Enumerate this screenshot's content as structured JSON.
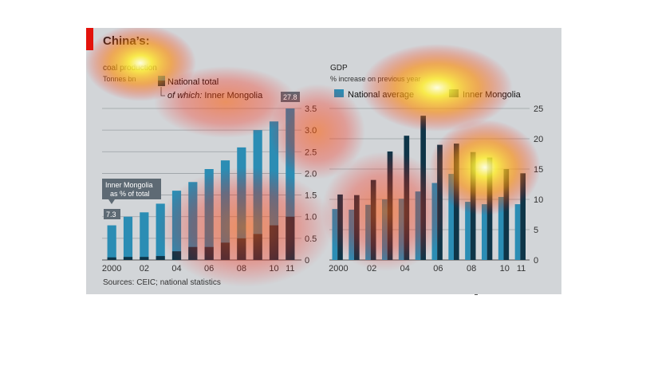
{
  "figure": {
    "title": "China’s:",
    "sources": "Sources: CEIC; national statistics"
  },
  "colors": {
    "background": "#d2d5d8",
    "accent_red": "#e3120b",
    "light_bar": "#2b8db4",
    "dark_bar": "#0e3548",
    "annotation_box": "#5e6a74"
  },
  "chart_data": [
    {
      "type": "bar",
      "title": "coal production",
      "subtitle": "Tonnes bn",
      "categories": [
        "2000",
        "01",
        "02",
        "03",
        "04",
        "05",
        "06",
        "07",
        "08",
        "09",
        "10",
        "11"
      ],
      "x_tick_labels": [
        "2000",
        "02",
        "04",
        "06",
        "08",
        "10",
        "11"
      ],
      "series": [
        {
          "name": "National total",
          "values": [
            0.8,
            1.0,
            1.1,
            1.3,
            1.6,
            1.8,
            2.1,
            2.3,
            2.6,
            3.0,
            3.2,
            3.5
          ]
        },
        {
          "name": "of which: Inner Mongolia",
          "values": [
            0.06,
            0.07,
            0.07,
            0.09,
            0.2,
            0.3,
            0.3,
            0.4,
            0.5,
            0.6,
            0.8,
            1.0
          ]
        }
      ],
      "legend": [
        "National total",
        "of which: Inner Mongolia"
      ],
      "legend_prefix": "of which:",
      "legend_suffix": "Inner Mongolia",
      "ylim": [
        0,
        3.5
      ],
      "y_ticks": [
        "0",
        "0.5",
        "1.0",
        "1.5",
        "2.0",
        "2.5",
        "3.0",
        "3.5"
      ],
      "annotation": {
        "text_line1": "Inner Mongolia",
        "text_line2": "as % of total",
        "start_value": "7.3",
        "end_value": "27.8"
      }
    },
    {
      "type": "bar",
      "title": "GDP",
      "subtitle": "% increase on previous year",
      "categories": [
        "2000",
        "01",
        "02",
        "03",
        "04",
        "05",
        "06",
        "07",
        "08",
        "09",
        "10",
        "11"
      ],
      "x_tick_labels": [
        "2000",
        "02",
        "04",
        "06",
        "08",
        "10",
        "11"
      ],
      "series": [
        {
          "name": "National average",
          "values": [
            8.4,
            8.3,
            9.1,
            10.0,
            10.1,
            11.3,
            12.7,
            14.2,
            9.6,
            9.2,
            10.4,
            9.2
          ]
        },
        {
          "name": "Inner Mongolia",
          "values": [
            10.8,
            10.7,
            13.2,
            17.9,
            20.5,
            23.8,
            19.0,
            19.2,
            17.8,
            16.9,
            15.0,
            14.3
          ]
        }
      ],
      "ylim": [
        0,
        25
      ],
      "y_ticks": [
        "0",
        "5",
        "10",
        "15",
        "20",
        "25"
      ]
    }
  ]
}
